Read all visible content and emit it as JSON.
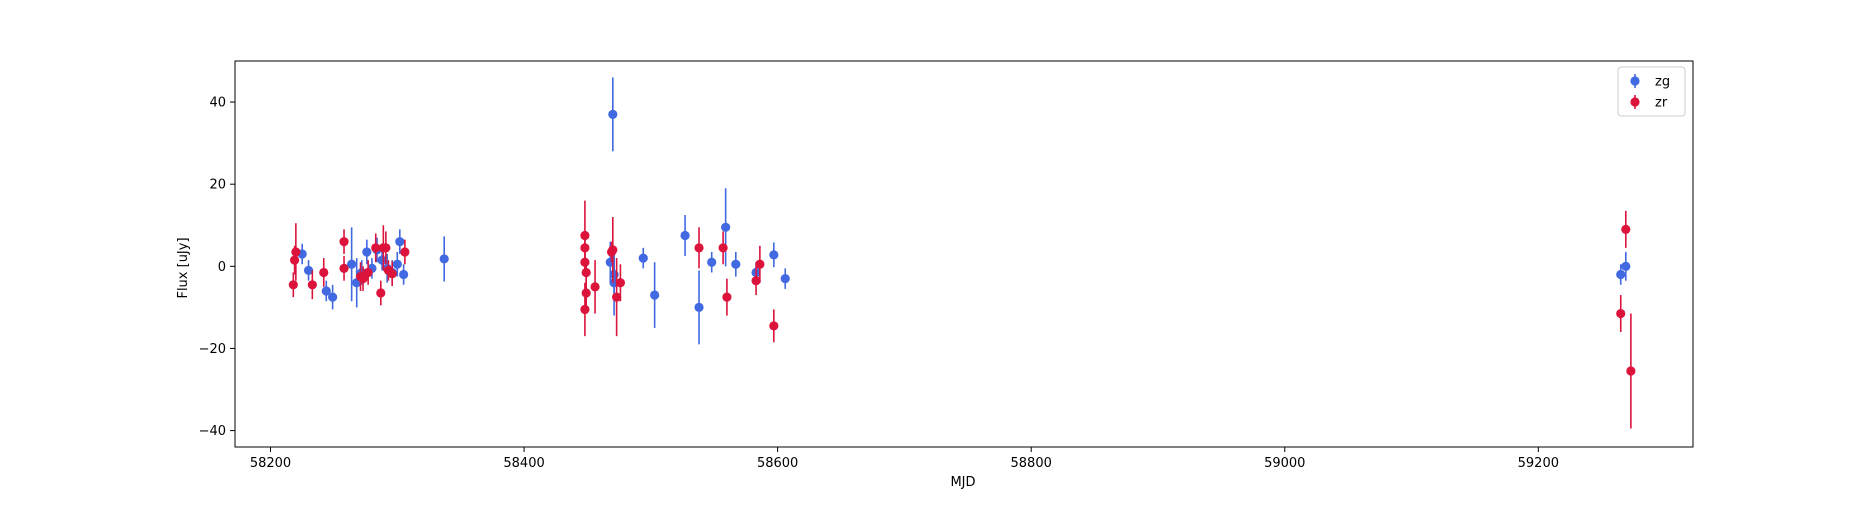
{
  "chart_data": {
    "type": "scatter",
    "title": "",
    "xlabel": "MJD",
    "ylabel": "Flux [uJy]",
    "xlim": [
      58172,
      59322
    ],
    "ylim": [
      -44,
      50
    ],
    "xticks": [
      58200,
      58400,
      58600,
      58800,
      59000,
      59200
    ],
    "yticks": [
      -40,
      -20,
      0,
      20,
      40
    ],
    "grid": false,
    "legend_position": "top-right",
    "error_bars": true,
    "series": [
      {
        "name": "zg",
        "color": "#4169E1",
        "points": [
          {
            "x": 58225,
            "y": 3.0,
            "err": 2.5
          },
          {
            "x": 58230,
            "y": -1.0,
            "err": 2.5
          },
          {
            "x": 58244,
            "y": -6.0,
            "err": 2.5
          },
          {
            "x": 58249,
            "y": -7.5,
            "err": 3.0
          },
          {
            "x": 58264,
            "y": 0.5,
            "err": 9.0
          },
          {
            "x": 58268,
            "y": -4.0,
            "err": 6.0
          },
          {
            "x": 58272,
            "y": -1.5,
            "err": 3.0
          },
          {
            "x": 58276,
            "y": 3.5,
            "err": 3.0
          },
          {
            "x": 58280,
            "y": -0.5,
            "err": 2.5
          },
          {
            "x": 58284,
            "y": 4.0,
            "err": 3.0
          },
          {
            "x": 58288,
            "y": 1.5,
            "err": 2.5
          },
          {
            "x": 58292,
            "y": -0.5,
            "err": 3.5
          },
          {
            "x": 58296,
            "y": -1.5,
            "err": 3.0
          },
          {
            "x": 58300,
            "y": 0.5,
            "err": 3.0
          },
          {
            "x": 58302,
            "y": 6.0,
            "err": 3.0
          },
          {
            "x": 58305,
            "y": -2.0,
            "err": 2.5
          },
          {
            "x": 58337,
            "y": 1.8,
            "err": 5.5
          },
          {
            "x": 58468,
            "y": 1.0,
            "err": 5.0
          },
          {
            "x": 58470,
            "y": 37.0,
            "err": 9.0
          },
          {
            "x": 58471,
            "y": -2.0,
            "err": 4.5
          },
          {
            "x": 58471,
            "y": -4.0,
            "err": 8.0
          },
          {
            "x": 58494,
            "y": 2.0,
            "err": 2.5
          },
          {
            "x": 58503,
            "y": -7.0,
            "err": 8.0
          },
          {
            "x": 58527,
            "y": 7.5,
            "err": 5.0
          },
          {
            "x": 58538,
            "y": -10.0,
            "err": 9.0
          },
          {
            "x": 58548,
            "y": 1.0,
            "err": 2.5
          },
          {
            "x": 58559,
            "y": 9.5,
            "err": 9.5
          },
          {
            "x": 58567,
            "y": 0.5,
            "err": 3.0
          },
          {
            "x": 58583,
            "y": -1.5,
            "err": 2.5
          },
          {
            "x": 58597,
            "y": 2.8,
            "err": 3.0
          },
          {
            "x": 58606,
            "y": -3.0,
            "err": 2.5
          },
          {
            "x": 59265,
            "y": -2.0,
            "err": 2.5
          },
          {
            "x": 59269,
            "y": 0.0,
            "err": 3.5
          }
        ]
      },
      {
        "name": "zr",
        "color": "#DC143C",
        "points": [
          {
            "x": 58218,
            "y": -4.5,
            "err": 3.0
          },
          {
            "x": 58219,
            "y": 1.5,
            "err": 3.5
          },
          {
            "x": 58220,
            "y": 3.5,
            "err": 7.0
          },
          {
            "x": 58233,
            "y": -4.5,
            "err": 3.5
          },
          {
            "x": 58242,
            "y": -1.5,
            "err": 3.5
          },
          {
            "x": 58258,
            "y": 6.0,
            "err": 3.0
          },
          {
            "x": 58258,
            "y": -0.5,
            "err": 3.0
          },
          {
            "x": 58271,
            "y": -2.5,
            "err": 3.5
          },
          {
            "x": 58273,
            "y": -3.0,
            "err": 3.0
          },
          {
            "x": 58277,
            "y": -1.5,
            "err": 3.0
          },
          {
            "x": 58283,
            "y": 4.5,
            "err": 3.5
          },
          {
            "x": 58287,
            "y": -6.5,
            "err": 3.0
          },
          {
            "x": 58289,
            "y": 4.5,
            "err": 5.5
          },
          {
            "x": 58291,
            "y": 4.5,
            "err": 4.0
          },
          {
            "x": 58293,
            "y": -1.0,
            "err": 2.5
          },
          {
            "x": 58296,
            "y": -1.8,
            "err": 3.0
          },
          {
            "x": 58306,
            "y": 3.5,
            "err": 3.0
          },
          {
            "x": 58448,
            "y": 7.5,
            "err": 8.5
          },
          {
            "x": 58448,
            "y": 4.5,
            "err": 4.0
          },
          {
            "x": 58448,
            "y": 1.0,
            "err": 3.5
          },
          {
            "x": 58449,
            "y": -1.5,
            "err": 3.5
          },
          {
            "x": 58449,
            "y": -6.5,
            "err": 3.5
          },
          {
            "x": 58448,
            "y": -10.5,
            "err": 6.5
          },
          {
            "x": 58456,
            "y": -5.0,
            "err": 6.5
          },
          {
            "x": 58469,
            "y": 3.5,
            "err": 2.5
          },
          {
            "x": 58470,
            "y": 4.0,
            "err": 8.0
          },
          {
            "x": 58473,
            "y": -7.5,
            "err": 9.5
          },
          {
            "x": 58476,
            "y": -4.0,
            "err": 4.5
          },
          {
            "x": 58538,
            "y": 4.5,
            "err": 5.0
          },
          {
            "x": 58557,
            "y": 4.5,
            "err": 4.0
          },
          {
            "x": 58560,
            "y": -7.5,
            "err": 4.5
          },
          {
            "x": 58583,
            "y": -3.5,
            "err": 3.5
          },
          {
            "x": 58586,
            "y": 0.5,
            "err": 4.5
          },
          {
            "x": 58597,
            "y": -14.5,
            "err": 4.0
          },
          {
            "x": 59265,
            "y": -11.5,
            "err": 4.5
          },
          {
            "x": 59269,
            "y": 9.0,
            "err": 4.5
          },
          {
            "x": 59273,
            "y": -25.5,
            "err": 14.0
          }
        ]
      }
    ]
  }
}
